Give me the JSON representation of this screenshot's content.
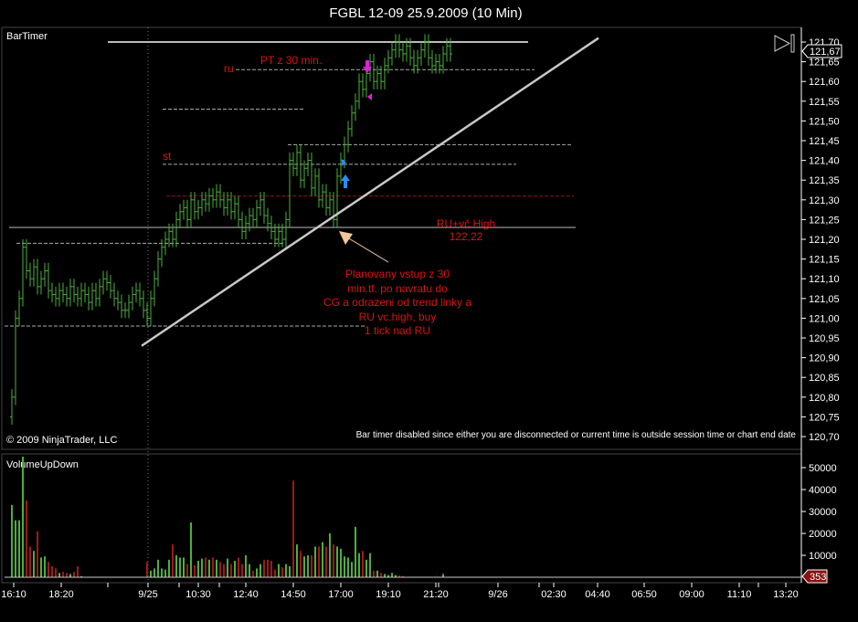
{
  "window": {
    "title": "FGBL 12-09  25.9.2009 (10 Min)"
  },
  "labels": {
    "bar_timer": "BarTimer",
    "copyright": "© 2009 NinjaTrader, LLC",
    "bar_timer_msg": "Bar timer disabled since either you are disconnected or current time is outside session time or chart end date",
    "volume_panel": "VolumeUpDown"
  },
  "annotations": {
    "pt": "PT z 30 min.",
    "ru": "ru",
    "st": "st",
    "ru_high_1": "RU+vč.High",
    "ru_high_2": "122,22",
    "plan": [
      "Planovany vstup z 30",
      "min.tf. po navratu do",
      "CG a odrazeni od trend linky a",
      "RU vc.high, buy",
      "1 tick nad RU"
    ]
  },
  "colors": {
    "up": "#4caf3c",
    "down": "#a01818",
    "annotation": "#e01010",
    "marker_magenta": "#e020e0",
    "marker_blue": "#2a8cff",
    "grid": "#c8c8c8"
  },
  "chart_data": [
    {
      "type": "ohlc",
      "title": "FGBL 12-09  25.9.2009 (10 Min)",
      "ylim": [
        120.7,
        121.7
      ],
      "yticks": [
        "121,70",
        "121,65",
        "121,60",
        "121,55",
        "121,50",
        "121,45",
        "121,40",
        "121,35",
        "121,30",
        "121,25",
        "121,20",
        "121,15",
        "121,10",
        "121,05",
        "121,00",
        "120,95",
        "120,90",
        "120,85",
        "120,80",
        "120,75",
        "120,70"
      ],
      "last_price": "121,67",
      "close": [
        120.8,
        121.0,
        121.05,
        121.18,
        121.12,
        121.1,
        121.13,
        121.08,
        121.1,
        121.12,
        121.07,
        121.06,
        121.05,
        121.07,
        121.06,
        121.05,
        121.08,
        121.06,
        121.05,
        121.07,
        121.06,
        121.04,
        121.07,
        121.05,
        121.08,
        121.1,
        121.09,
        121.07,
        121.05,
        121.04,
        121.02,
        121.02,
        121.04,
        121.06,
        121.07,
        121.05,
        121.02,
        121.0,
        121.05,
        121.1,
        121.15,
        121.18,
        121.2,
        121.22,
        121.2,
        121.25,
        121.27,
        121.28,
        121.25,
        121.3,
        121.27,
        121.28,
        121.3,
        121.29,
        121.31,
        121.3,
        121.32,
        121.3,
        121.28,
        121.3,
        121.27,
        121.29,
        121.25,
        121.22,
        121.24,
        121.26,
        121.25,
        121.28,
        121.3,
        121.26,
        121.24,
        121.22,
        121.2,
        121.22,
        121.2,
        121.25,
        121.4,
        121.38,
        121.42,
        121.35,
        121.38,
        121.4,
        121.33,
        121.36,
        121.3,
        121.32,
        121.28,
        121.3,
        121.25,
        121.36,
        121.4,
        121.44,
        121.48,
        121.52,
        121.55,
        121.6,
        121.58,
        121.62,
        121.65,
        121.6,
        121.62,
        121.6,
        121.64,
        121.66,
        121.68,
        121.7,
        121.68,
        121.67,
        121.69,
        121.66,
        121.64,
        121.66,
        121.68,
        121.7,
        121.66,
        121.64,
        121.65,
        121.64,
        121.67,
        121.69,
        121.67
      ],
      "levels": [
        {
          "price": 121.7,
          "style": "solid"
        },
        {
          "price": 121.63,
          "style": "dashed",
          "label": "ru"
        },
        {
          "price": 121.53,
          "style": "dashed"
        },
        {
          "price": 121.44,
          "style": "dashed"
        },
        {
          "price": 121.39,
          "style": "dashed",
          "label": "st"
        },
        {
          "price": 121.31,
          "style": "dashed-red"
        },
        {
          "price": 121.23,
          "style": "solid-thin"
        },
        {
          "price": 121.19,
          "style": "dashed"
        },
        {
          "price": 120.98,
          "style": "dashed"
        }
      ],
      "trendline": {
        "from": [
          "9/25 open",
          120.93
        ],
        "to": [
          "9/26 05:00",
          121.71
        ]
      }
    },
    {
      "type": "bar",
      "title": "VolumeUpDown",
      "ylim": [
        0,
        55000
      ],
      "yticks": [
        "50000",
        "40000",
        "30000",
        "20000",
        "10000"
      ],
      "last_value": "353",
      "xticks": [
        "16:10",
        "18:20",
        "9/25",
        "10:30",
        "12:40",
        "14:50",
        "17:00",
        "19:10",
        "21:20",
        "9/26",
        "02:30",
        "04:40",
        "06:50",
        "09:00",
        "11:10",
        "13:20"
      ],
      "values": [
        33000,
        26000,
        26000,
        55000,
        35000,
        14000,
        12000,
        21000,
        9000,
        9500,
        7000,
        5000,
        4000,
        2000,
        2500,
        2000,
        1500,
        2500,
        5000,
        500,
        0,
        0,
        0,
        0,
        0,
        0,
        0,
        0,
        0,
        0,
        0,
        0,
        0,
        0,
        0,
        0,
        0,
        7000,
        3000,
        4000,
        8000,
        4000,
        3500,
        8000,
        15000,
        10000,
        9000,
        9000,
        6000,
        25000,
        5500,
        7500,
        8500,
        9000,
        8000,
        9000,
        8000,
        7000,
        6000,
        8500,
        6000,
        7500,
        9000,
        6000,
        10000,
        6000,
        3000,
        4000,
        6000,
        8000,
        8000,
        7500,
        3500,
        6000,
        4500,
        6000,
        5000,
        44000,
        15000,
        12000,
        9500,
        10000,
        10000,
        14000,
        14000,
        16000,
        14000,
        20000,
        15000,
        14000,
        13000,
        9500,
        9000,
        7000,
        23000,
        11000,
        12000,
        8000,
        11000,
        3000,
        3000,
        2000,
        1500,
        1000,
        2000,
        1000,
        800,
        600,
        0,
        0,
        0,
        0,
        0,
        0,
        0,
        0,
        0,
        0,
        1500,
        0,
        0
      ]
    }
  ]
}
